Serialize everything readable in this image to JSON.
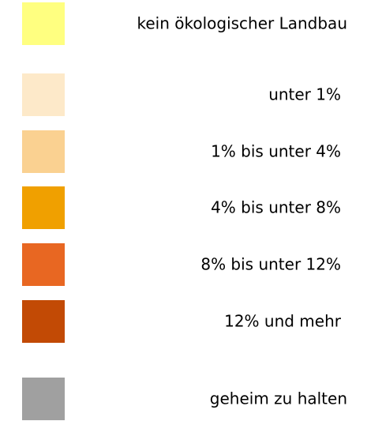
{
  "legend": {
    "items": [
      {
        "label": "kein ökologischer Landbau",
        "color": "#ffff80"
      },
      {
        "label": "unter 1%",
        "color": "#fde9c9"
      },
      {
        "label": "1% bis unter 4%",
        "color": "#fad191"
      },
      {
        "label": "4% bis unter 8%",
        "color": "#f0a000"
      },
      {
        "label": "8% bis unter 12%",
        "color": "#e86722"
      },
      {
        "label": "12% und mehr",
        "color": "#c24a05"
      },
      {
        "label": "geheim zu halten",
        "color": "#a0a0a0"
      }
    ]
  }
}
